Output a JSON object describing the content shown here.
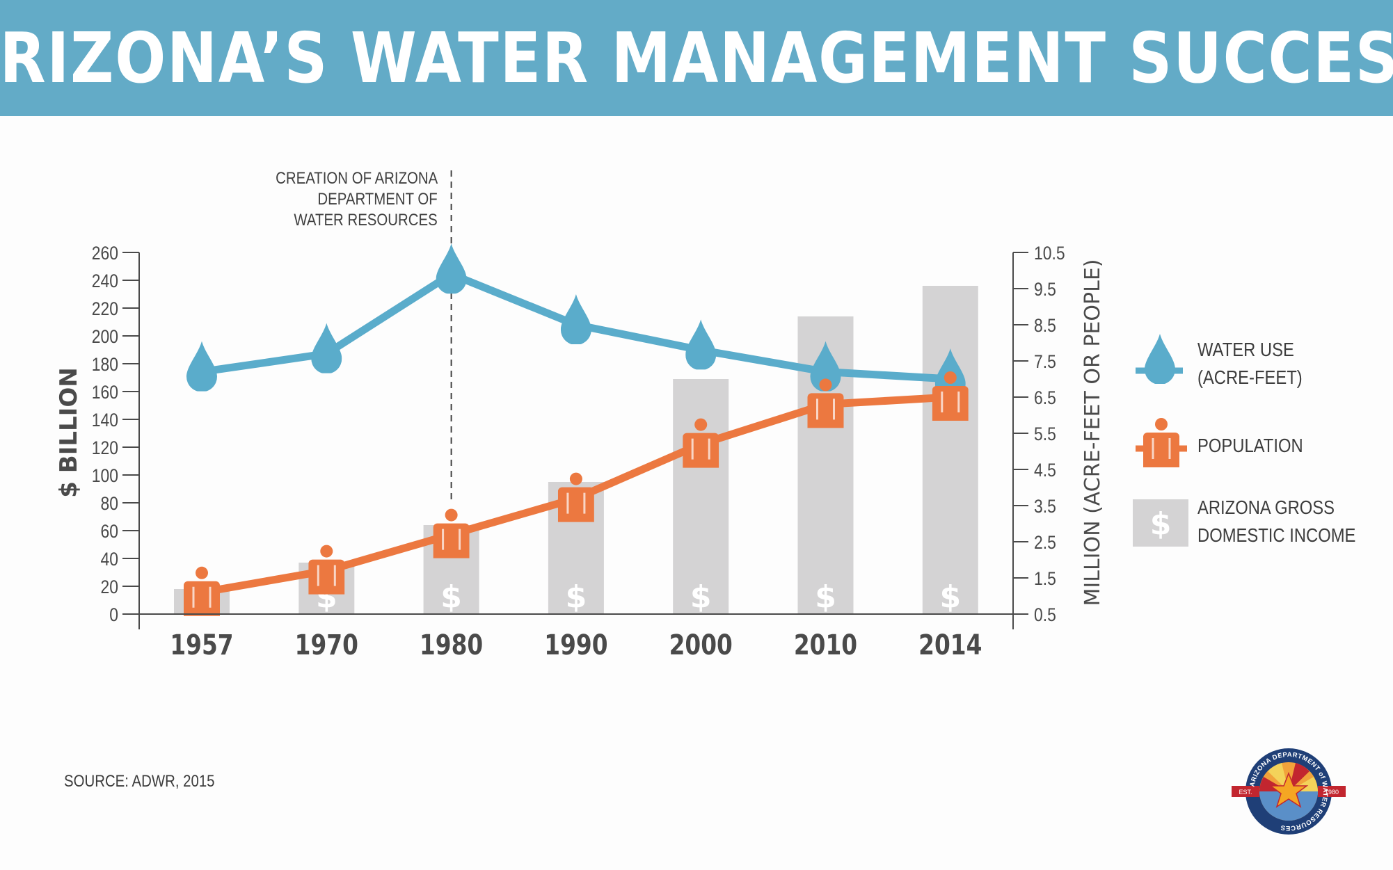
{
  "title": "ARIZONA’S WATER MANAGEMENT SUCCESS",
  "source": "SOURCE: ADWR, 2015",
  "annotation": {
    "lines": [
      "CREATION OF ARIZONA",
      "DEPARTMENT OF",
      "WATER RESOURCES"
    ],
    "year": "1980"
  },
  "legend": {
    "water": [
      "WATER USE",
      "(ACRE-FEET)"
    ],
    "population": [
      "POPULATION"
    ],
    "gdi": [
      "ARIZONA GROSS",
      "DOMESTIC INCOME"
    ]
  },
  "logo": {
    "ring_text": "ARIZONA DEPARTMENT of WATER RESOURCES",
    "est_label": "EST.",
    "est_year": "1980"
  },
  "colors": {
    "header": "#63abc7",
    "water": "#5aaccb",
    "population": "#ec7840",
    "bars": "#d4d3d4",
    "axis_text": "#4a4a4a"
  },
  "chart_data": {
    "type": "bar",
    "categories": [
      "1957",
      "1970",
      "1980",
      "1990",
      "2000",
      "2010",
      "2014"
    ],
    "y_left": {
      "label": "$ BILLION",
      "ylim": [
        0,
        260
      ],
      "ticks": [
        "0",
        "20",
        "40",
        "60",
        "80",
        "100",
        "120",
        "140",
        "160",
        "180",
        "200",
        "220",
        "240",
        "260"
      ]
    },
    "y_right": {
      "label": "MILLION (ACRE-FEET OR PEOPLE)",
      "ylim": [
        0.5,
        10.5
      ],
      "ticks": [
        "0.5",
        "1.5",
        "2.5",
        "3.5",
        "4.5",
        "5.5",
        "6.5",
        "7.5",
        "8.5",
        "9.5",
        "10.5"
      ]
    },
    "series": [
      {
        "name": "ARIZONA GROSS DOMESTIC INCOME",
        "type": "bar",
        "axis": "left",
        "values": [
          18,
          37,
          64,
          95,
          169,
          214,
          236
        ]
      },
      {
        "name": "WATER USE (ACRE-FEET)",
        "type": "line",
        "axis": "right",
        "values": [
          7.2,
          7.7,
          9.9,
          8.5,
          7.8,
          7.2,
          7.0
        ]
      },
      {
        "name": "POPULATION",
        "type": "line",
        "axis": "right",
        "values": [
          1.1,
          1.7,
          2.7,
          3.7,
          5.2,
          6.3,
          6.5
        ]
      }
    ],
    "legend_position": "right",
    "grid": false
  }
}
